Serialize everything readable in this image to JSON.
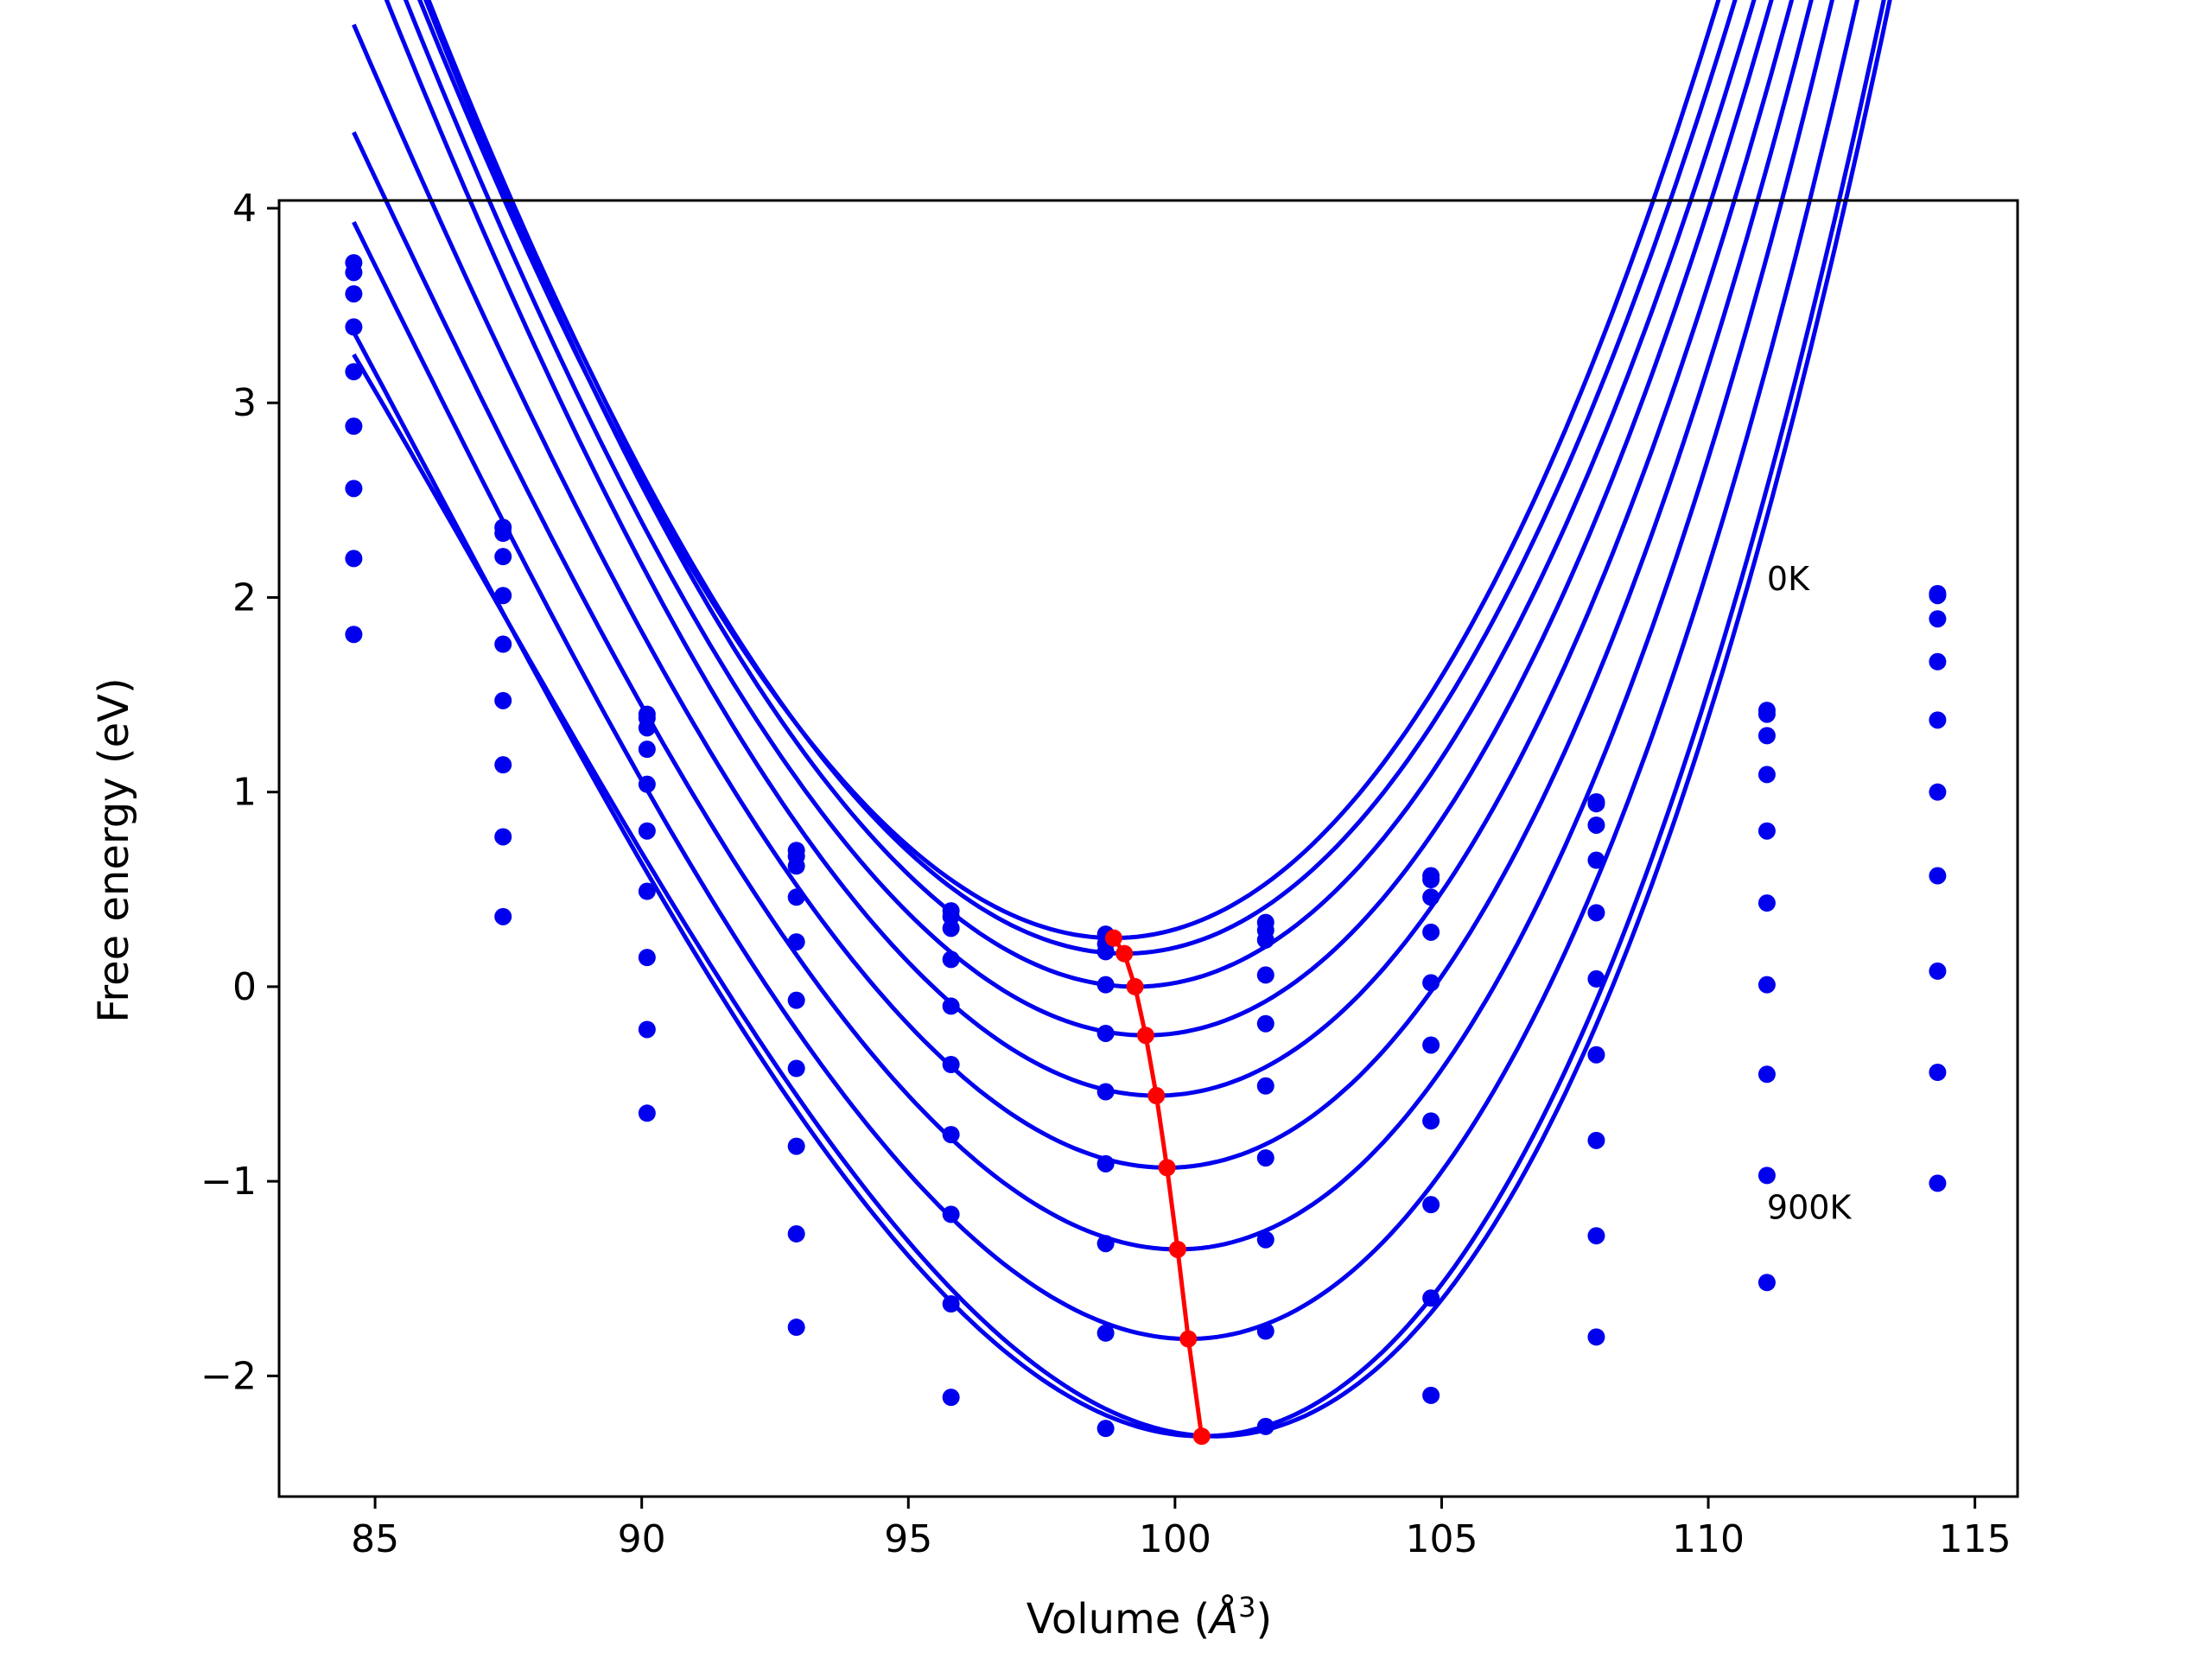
{
  "chart_data": {
    "type": "line",
    "xlabel": "Volume",
    "xlabel_unit_base": "Å",
    "xlabel_unit_exp": "3",
    "ylabel": "Free energy (eV)",
    "xlim": [
      83.2,
      115.8
    ],
    "ylim": [
      -2.62,
      4.04
    ],
    "xticks": [
      85,
      90,
      95,
      100,
      105,
      110,
      115
    ],
    "yticks": [
      -2,
      -1,
      0,
      1,
      2,
      3,
      4
    ],
    "xtick_labels": [
      "85",
      "90",
      "95",
      "100",
      "105",
      "110",
      "115"
    ],
    "ytick_labels": [
      "−2",
      "−1",
      "0",
      "1",
      "2",
      "3",
      "4"
    ],
    "grid": false,
    "legend": "none",
    "colors": {
      "curves": "#0000ee",
      "minima": "#ff0000",
      "frame": "#000000"
    },
    "volumes": [
      84.6,
      87.4,
      90.1,
      92.9,
      95.8,
      98.7,
      101.7,
      104.8,
      107.9,
      111.1,
      114.3
    ],
    "series": [
      {
        "v0": 98.85,
        "f0": 0.25,
        "b": 0.003328,
        "c": 3.7e-05,
        "points": [
          3.72,
          2.36,
          1.4,
          0.7,
          0.39,
          0.27,
          0.33,
          0.57,
          0.95,
          1.42,
          2.02
        ]
      },
      {
        "v0": 99.05,
        "f0": 0.17,
        "b": 0.003335,
        "c": 3.5e-05,
        "points": [
          3.67,
          2.33,
          1.38,
          0.67,
          0.36,
          0.22,
          0.29,
          0.55,
          0.94,
          1.4,
          2.01
        ]
      },
      {
        "v0": 99.25,
        "f0": 0.0,
        "b": 0.003345,
        "c": 3.6e-05,
        "points": [
          3.56,
          2.21,
          1.33,
          0.62,
          0.3,
          0.18,
          0.24,
          0.46,
          0.83,
          1.29,
          1.89
        ]
      },
      {
        "v0": 99.45,
        "f0": -0.25,
        "b": 0.00336,
        "c": 4.3e-05,
        "points": [
          3.39,
          2.01,
          1.22,
          0.46,
          0.14,
          0.01,
          0.06,
          0.28,
          0.65,
          1.09,
          1.67
        ]
      },
      {
        "v0": 99.65,
        "f0": -0.56,
        "b": 0.003395,
        "c": 4.8e-05,
        "points": [
          3.16,
          1.76,
          1.04,
          0.23,
          -0.1,
          -0.24,
          -0.19,
          0.02,
          0.38,
          0.8,
          1.37
        ]
      },
      {
        "v0": 99.85,
        "f0": -0.93,
        "b": 0.00341,
        "c": 5.8e-05,
        "points": [
          2.88,
          1.47,
          0.8,
          -0.07,
          -0.4,
          -0.54,
          -0.51,
          -0.3,
          0.04,
          0.43,
          1.0
        ]
      },
      {
        "v0": 100.05,
        "f0": -1.35,
        "b": 0.00344,
        "c": 6.7e-05,
        "points": [
          2.56,
          1.14,
          0.49,
          -0.42,
          -0.76,
          -0.91,
          -0.88,
          -0.69,
          -0.35,
          0.01,
          0.57
        ]
      },
      {
        "v0": 100.25,
        "f0": -1.81,
        "b": 0.00347,
        "c": 7.2e-05,
        "points": [
          2.2,
          0.77,
          0.15,
          -0.82,
          -1.17,
          -1.32,
          -1.3,
          -1.12,
          -0.79,
          -0.45,
          0.08
        ]
      },
      {
        "v0": 100.5,
        "f0": -2.31,
        "b": 0.0035,
        "c": 7.9e-05,
        "points": [
          1.81,
          0.36,
          -0.22,
          -1.27,
          -1.63,
          -1.78,
          -1.77,
          -1.6,
          -1.28,
          -0.97,
          -0.44
        ]
      },
      {
        "v0": 100.75,
        "f0": -2.31,
        "b": 0.00352,
        "c": 8.6e-05,
        "points": [
          null,
          null,
          -0.65,
          -1.75,
          -2.11,
          -2.27,
          -2.26,
          -2.1,
          -1.8,
          -1.52,
          -1.01
        ]
      }
    ],
    "minima": {
      "x": [
        98.85,
        99.05,
        99.25,
        99.45,
        99.65,
        99.85,
        100.05,
        100.25,
        100.5
      ],
      "y": [
        0.25,
        0.17,
        0.0,
        -0.25,
        -0.56,
        -0.93,
        -1.35,
        -1.81,
        -2.31
      ]
    },
    "annotations": [
      {
        "text": "0K",
        "x": 111.1,
        "y": 2.1
      },
      {
        "text": "900K",
        "x": 111.1,
        "y": -1.13
      }
    ]
  }
}
